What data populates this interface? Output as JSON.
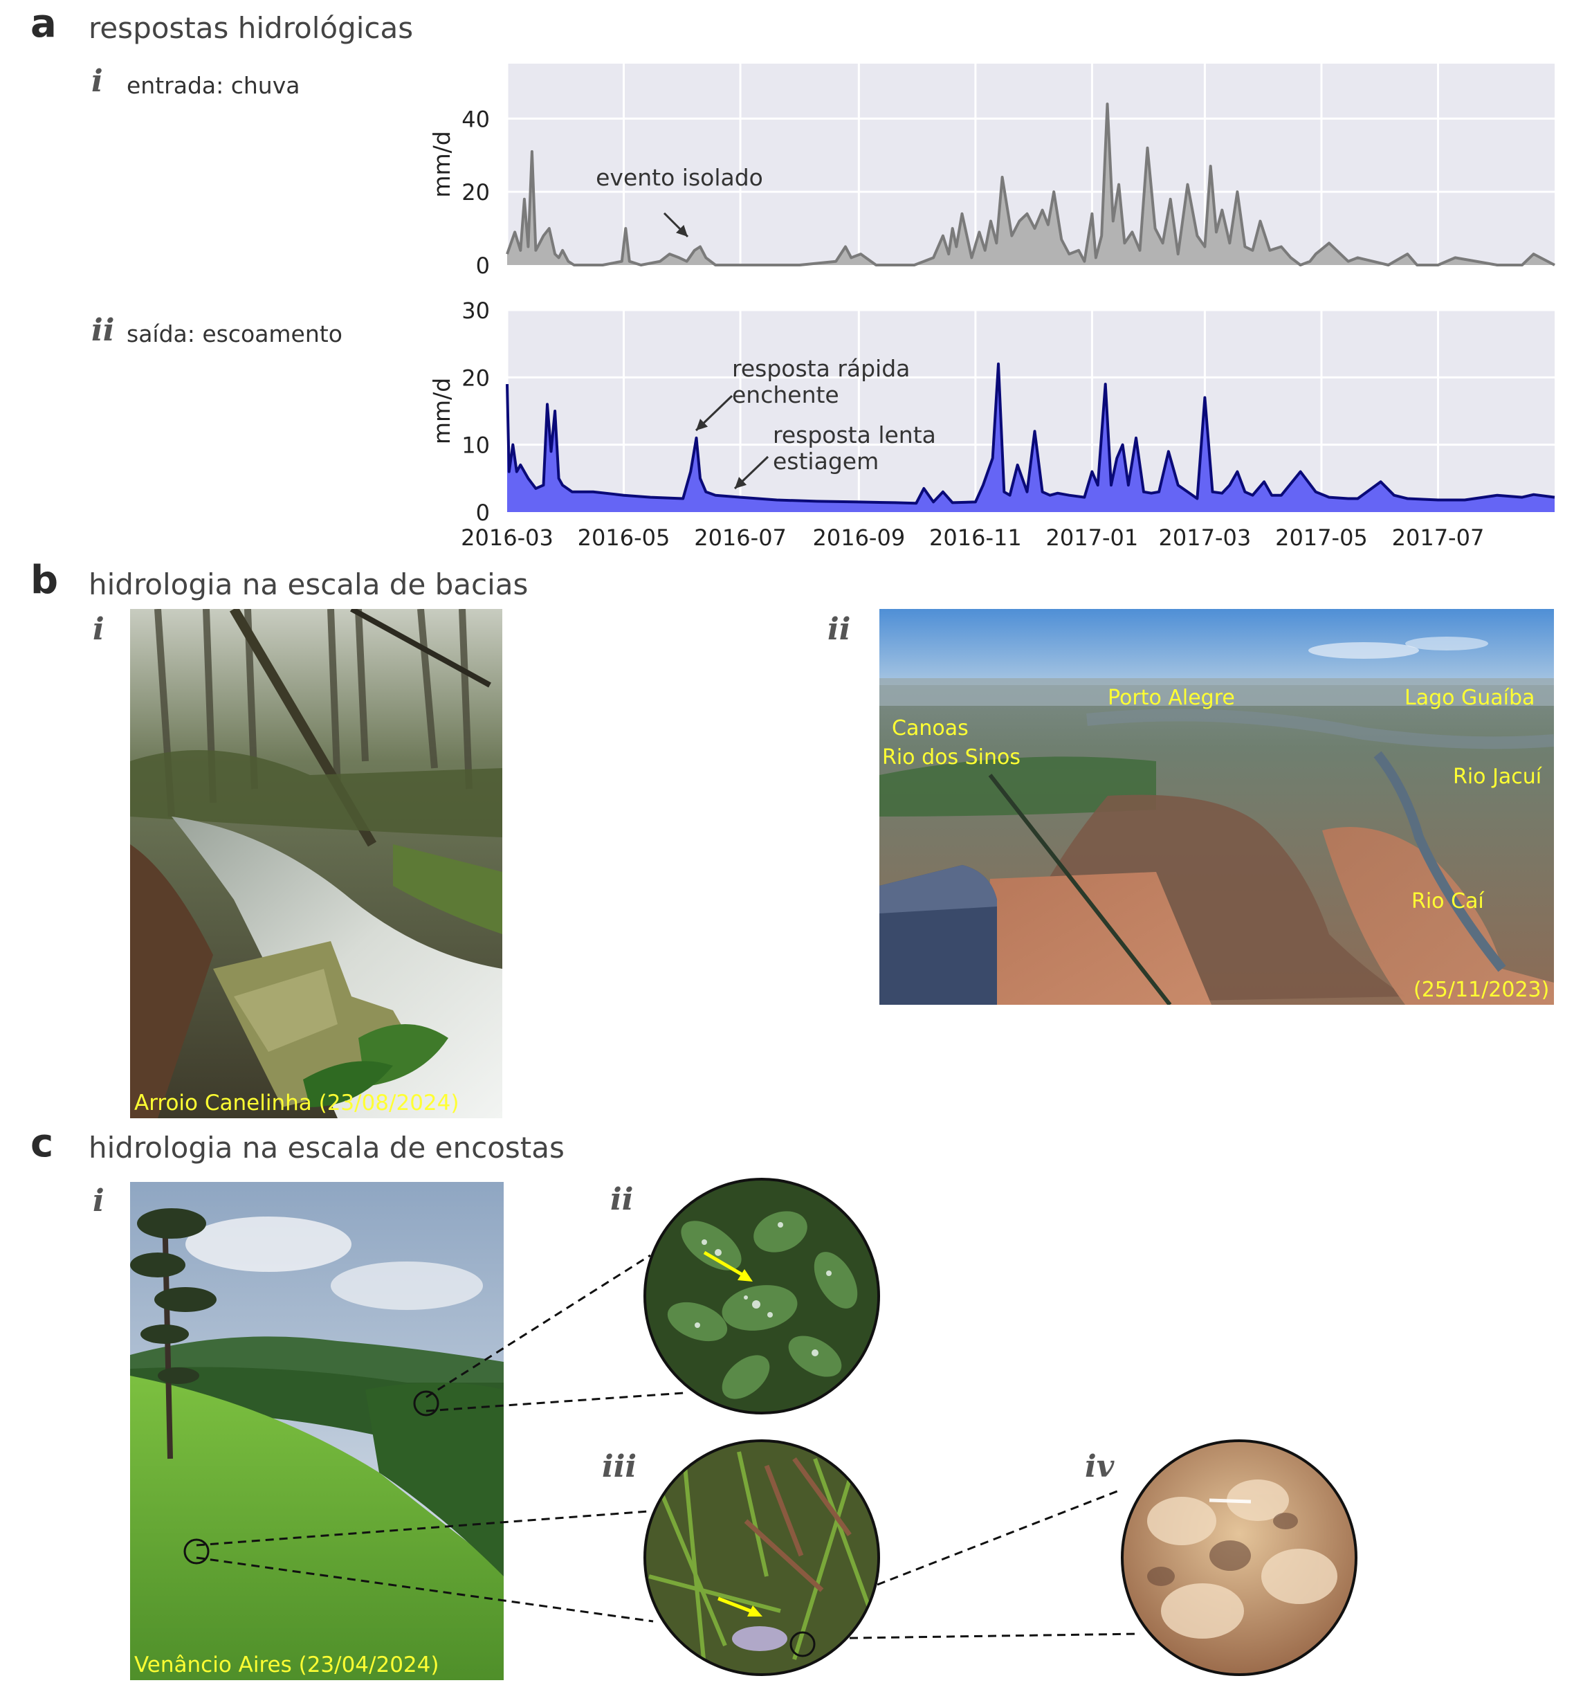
{
  "panel_a": {
    "letter": "a",
    "title": "respostas hidrológicas",
    "sub_i": {
      "roman": "i",
      "label": "entrada: chuva"
    },
    "sub_ii": {
      "roman": "ii",
      "label": "saída: escoamento"
    }
  },
  "panel_b": {
    "letter": "b",
    "title": "hidrologia na escala de bacias",
    "sub_i": {
      "roman": "i",
      "caption": "Arroio Canelinha (23/08/2024)"
    },
    "sub_ii": {
      "roman": "ii",
      "places": [
        "Porto Alegre",
        "Lago Guaíba",
        "Canoas",
        "Rio dos Sinos",
        "Rio Jacuí",
        "Rio Caí"
      ],
      "date": "(25/11/2023)"
    }
  },
  "panel_c": {
    "letter": "c",
    "title": "hidrologia na escala de encostas",
    "sub_i": {
      "roman": "i",
      "caption": "Venâncio Aires (23/04/2024)"
    },
    "sub_ii": {
      "roman": "ii"
    },
    "sub_iii": {
      "roman": "iii"
    },
    "sub_iv": {
      "roman": "iv"
    }
  },
  "chart_data": [
    {
      "type": "area",
      "ylabel": "mm/d",
      "ylim": [
        0,
        55
      ],
      "yticks": [
        "0",
        "20",
        "40"
      ],
      "grid": true,
      "x_ticks": [
        "2016-03",
        "2016-05",
        "2016-07",
        "2016-09",
        "2016-11",
        "2017-01",
        "2017-03",
        "2017-05",
        "2017-07"
      ],
      "x_range": [
        "2016-03-01",
        "2017-08-31"
      ],
      "colors": {
        "line": "#7a7a7a",
        "fill": "#b3b3b3",
        "background": "#e8e8f0"
      },
      "annotation": "evento isolado",
      "series": [
        {
          "x": [
            "2016-03-01",
            "2016-03-05",
            "2016-03-08",
            "2016-03-10",
            "2016-03-12",
            "2016-03-14",
            "2016-03-16",
            "2016-03-18",
            "2016-03-20",
            "2016-03-23",
            "2016-03-26",
            "2016-03-28",
            "2016-03-30",
            "2016-04-02",
            "2016-04-05",
            "2016-04-08",
            "2016-04-12",
            "2016-04-20",
            "2016-04-30",
            "2016-05-02",
            "2016-05-04",
            "2016-05-10",
            "2016-05-20",
            "2016-05-25",
            "2016-05-30",
            "2016-06-03",
            "2016-06-07",
            "2016-06-10",
            "2016-06-13",
            "2016-06-18",
            "2016-07-01",
            "2016-08-01",
            "2016-08-20",
            "2016-08-25",
            "2016-08-28",
            "2016-09-02",
            "2016-09-10",
            "2016-09-20",
            "2016-09-30",
            "2016-10-05",
            "2016-10-10",
            "2016-10-15",
            "2016-10-18",
            "2016-10-20",
            "2016-10-22",
            "2016-10-25",
            "2016-10-30",
            "2016-11-03",
            "2016-11-06",
            "2016-11-09",
            "2016-11-12",
            "2016-11-15",
            "2016-11-20",
            "2016-11-24",
            "2016-11-28",
            "2016-12-02",
            "2016-12-06",
            "2016-12-09",
            "2016-12-12",
            "2016-12-16",
            "2016-12-20",
            "2016-12-25",
            "2016-12-28",
            "2017-01-01",
            "2017-01-03",
            "2017-01-06",
            "2017-01-09",
            "2017-01-12",
            "2017-01-15",
            "2017-01-18",
            "2017-01-22",
            "2017-01-26",
            "2017-01-30",
            "2017-02-03",
            "2017-02-07",
            "2017-02-11",
            "2017-02-15",
            "2017-02-20",
            "2017-02-25",
            "2017-03-01",
            "2017-03-04",
            "2017-03-07",
            "2017-03-10",
            "2017-03-14",
            "2017-03-18",
            "2017-03-22",
            "2017-03-26",
            "2017-03-30",
            "2017-04-04",
            "2017-04-10",
            "2017-04-15",
            "2017-04-20",
            "2017-04-25",
            "2017-04-28",
            "2017-05-05",
            "2017-05-15",
            "2017-05-20",
            "2017-05-28",
            "2017-06-05",
            "2017-06-15",
            "2017-06-20",
            "2017-07-01",
            "2017-07-10",
            "2017-08-01",
            "2017-08-14",
            "2017-08-20",
            "2017-08-31"
          ],
          "y": [
            3,
            9,
            4,
            18,
            5,
            31,
            4,
            6,
            8,
            10,
            3,
            2,
            4,
            1,
            0,
            0,
            0,
            0,
            1,
            10,
            1,
            0,
            1,
            3,
            2,
            1,
            4,
            5,
            2,
            0,
            0,
            0,
            1,
            5,
            2,
            3,
            0,
            0,
            0,
            1,
            2,
            8,
            3,
            10,
            5,
            14,
            2,
            9,
            4,
            12,
            6,
            24,
            8,
            12,
            14,
            10,
            15,
            11,
            20,
            7,
            3,
            4,
            1,
            14,
            2,
            8,
            44,
            12,
            22,
            6,
            9,
            4,
            32,
            10,
            6,
            18,
            3,
            22,
            8,
            5,
            27,
            9,
            15,
            6,
            20,
            5,
            4,
            12,
            4,
            5,
            2,
            0,
            1,
            3,
            6,
            1,
            2,
            1,
            0,
            3,
            0,
            0,
            2,
            0,
            0,
            3,
            0
          ]
        }
      ]
    },
    {
      "type": "area",
      "ylabel": "mm/d",
      "ylim": [
        0,
        30
      ],
      "yticks": [
        "0",
        "10",
        "20",
        "30"
      ],
      "grid": true,
      "x_ticks": [
        "2016-03",
        "2016-05",
        "2016-07",
        "2016-09",
        "2016-11",
        "2017-01",
        "2017-03",
        "2017-05",
        "2017-07"
      ],
      "x_range": [
        "2016-03-01",
        "2017-08-31"
      ],
      "colors": {
        "line": "#0a0a78",
        "fill": "#6565f5",
        "background": "#e8e8f0"
      },
      "annotations": [
        "resposta rápida\nenchente",
        "resposta lenta\nestiagem"
      ],
      "series": [
        {
          "x": [
            "2016-03-01",
            "2016-03-02",
            "2016-03-04",
            "2016-03-06",
            "2016-03-08",
            "2016-03-12",
            "2016-03-16",
            "2016-03-20",
            "2016-03-22",
            "2016-03-24",
            "2016-03-26",
            "2016-03-28",
            "2016-03-30",
            "2016-04-04",
            "2016-04-15",
            "2016-05-01",
            "2016-05-15",
            "2016-06-01",
            "2016-06-05",
            "2016-06-08",
            "2016-06-10",
            "2016-06-13",
            "2016-06-18",
            "2016-07-01",
            "2016-07-20",
            "2016-08-10",
            "2016-09-01",
            "2016-09-20",
            "2016-10-01",
            "2016-10-05",
            "2016-10-10",
            "2016-10-15",
            "2016-10-20",
            "2016-11-01",
            "2016-11-05",
            "2016-11-10",
            "2016-11-13",
            "2016-11-16",
            "2016-11-19",
            "2016-11-23",
            "2016-11-28",
            "2016-12-02",
            "2016-12-06",
            "2016-12-10",
            "2016-12-14",
            "2016-12-20",
            "2016-12-28",
            "2017-01-01",
            "2017-01-04",
            "2017-01-08",
            "2017-01-11",
            "2017-01-14",
            "2017-01-17",
            "2017-01-20",
            "2017-01-24",
            "2017-01-28",
            "2017-02-01",
            "2017-02-05",
            "2017-02-10",
            "2017-02-15",
            "2017-02-20",
            "2017-02-25",
            "2017-03-01",
            "2017-03-05",
            "2017-03-10",
            "2017-03-14",
            "2017-03-18",
            "2017-03-22",
            "2017-03-26",
            "2017-04-01",
            "2017-04-05",
            "2017-04-10",
            "2017-04-20",
            "2017-04-28",
            "2017-05-05",
            "2017-05-15",
            "2017-05-20",
            "2017-06-01",
            "2017-06-08",
            "2017-06-15",
            "2017-07-01",
            "2017-07-15",
            "2017-08-01",
            "2017-08-14",
            "2017-08-20",
            "2017-08-31"
          ],
          "y": [
            19,
            6,
            10,
            6,
            7,
            5,
            3.5,
            4,
            16,
            9,
            15,
            5,
            4,
            3,
            3,
            2.5,
            2.2,
            2,
            6,
            11,
            5,
            3,
            2.5,
            2.2,
            1.8,
            1.6,
            1.5,
            1.4,
            1.3,
            3.5,
            1.5,
            3,
            1.4,
            1.5,
            4,
            8,
            22,
            3,
            2.5,
            7,
            3,
            12,
            3,
            2.5,
            2.8,
            2.5,
            2.2,
            6,
            4,
            19,
            4,
            8,
            10,
            4,
            11,
            3,
            2.8,
            3,
            9,
            4,
            3,
            2,
            17,
            3,
            2.8,
            4,
            6,
            3,
            2.5,
            4.5,
            2.5,
            2.5,
            6,
            3,
            2.2,
            2,
            2,
            4.5,
            2.5,
            2,
            1.8,
            1.8,
            2.5,
            2.2,
            2.6,
            2.2
          ]
        }
      ]
    }
  ]
}
